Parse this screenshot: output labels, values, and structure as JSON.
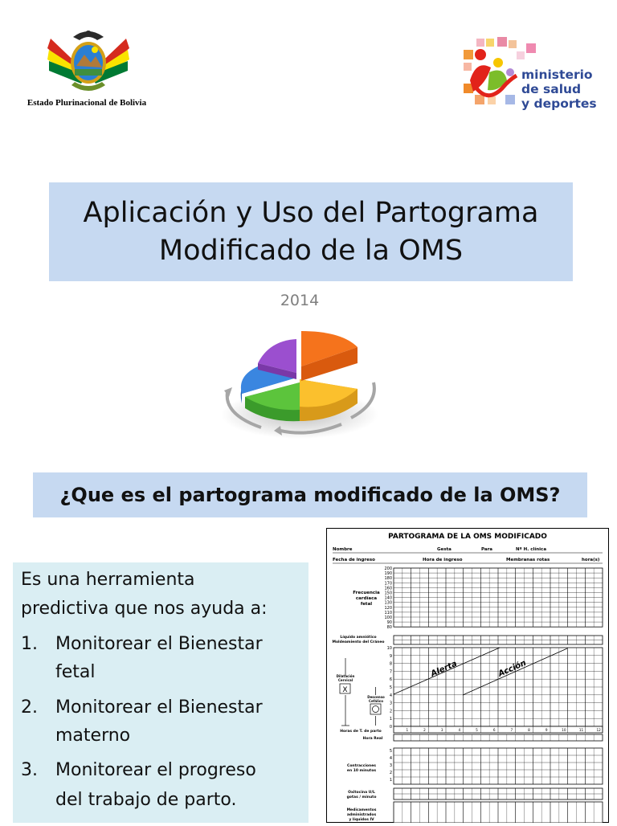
{
  "header": {
    "coat_caption": "Estado Plurinacional de Bolivia",
    "ministry_lines": [
      "ministerio",
      "de salud",
      "y deportes"
    ]
  },
  "slide": {
    "title_lines": [
      "Aplicación y Uso del Partograma",
      "Modificado de la OMS"
    ],
    "year": "2014"
  },
  "question": "¿Que es el partograma modificado de la OMS?",
  "description": {
    "intro_lines": [
      "Es una herramienta",
      "predictiva que nos ayuda a:"
    ],
    "items": [
      {
        "num": "1.",
        "lines": [
          "Monitorear el Bienestar",
          "fetal"
        ]
      },
      {
        "num": "2.",
        "lines": [
          "Monitorear el Bienestar",
          "materno"
        ]
      },
      {
        "num": "3.",
        "lines": [
          "Monitorear el progreso",
          "del trabajo de parto."
        ]
      }
    ]
  },
  "form": {
    "title": "PARTOGRAMA DE LA OMS MODIFICADO",
    "row1": [
      "Nombre",
      "Gesta",
      "Para",
      "Nº H. clínica"
    ],
    "row2": [
      "Fecha de ingreso",
      "Hora de ingreso",
      "Membranas rotas",
      "hora(s)"
    ],
    "fhr_label": [
      "Frecuencia",
      "cardíaca",
      "fetal"
    ],
    "fhr_ticks": [
      "200",
      "190",
      "180",
      "170",
      "160",
      "150",
      "140",
      "130",
      "120",
      "110",
      "100",
      "90",
      "80"
    ],
    "liquid_label": [
      "Líquido amniótico",
      "Moldeamiento del Cráneo"
    ],
    "dilation_label": [
      "Dilatación",
      "Cervical"
    ],
    "dilation_marker": "X",
    "descent_label": [
      "Descenso",
      "Cefálico"
    ],
    "dil_ticks": [
      "10",
      "9",
      "8",
      "7",
      "6",
      "5",
      "4",
      "3",
      "2",
      "1",
      "0"
    ],
    "alert_label": "Alerta",
    "action_label": "Acción",
    "hours_label": "Horas de T. de parto",
    "hours": [
      "1",
      "2",
      "3",
      "4",
      "5",
      "6",
      "7",
      "8",
      "9",
      "10",
      "11",
      "12"
    ],
    "real_hour_label": "Hora Real",
    "contraction_label": [
      "Contracciones",
      "en 10 minutos"
    ],
    "contraction_ticks": [
      "5",
      "4",
      "3",
      "2",
      "1"
    ],
    "oxytocin_label": [
      "Oxitocina U/L",
      "gotas / minuto"
    ],
    "meds_label": [
      "Medicamentos",
      "administrados",
      "y líquidos IV"
    ]
  }
}
